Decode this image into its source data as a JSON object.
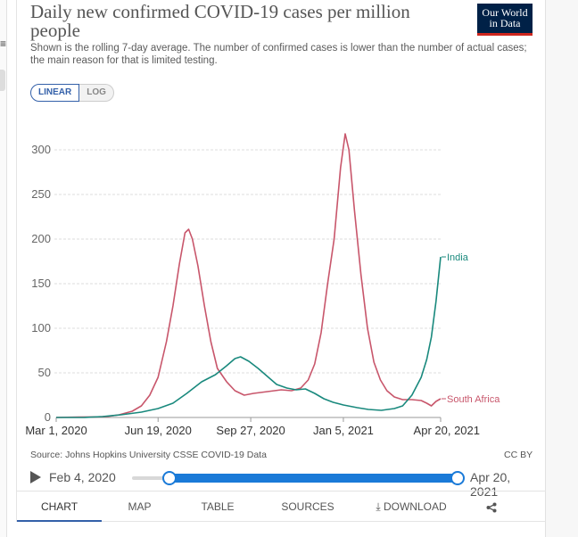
{
  "header": {
    "title": "Daily new confirmed COVID-19 cases per million people",
    "subtitle": "Shown is the rolling 7-day average. The number of confirmed cases is lower than the number of actual cases; the main reason for that is limited testing.",
    "logo_line1": "Our World",
    "logo_line2": "in Data"
  },
  "scale_toggle": {
    "linear": "LINEAR",
    "log": "LOG",
    "selected": "LINEAR"
  },
  "footer": {
    "source": "Source: Johns Hopkins University CSSE COVID-19 Data",
    "license": "CC BY"
  },
  "timeline": {
    "start_label": "Feb 4, 2020",
    "end_label": "Apr 20, 2021",
    "start_position": 0.07,
    "end_position": 1.0
  },
  "tabs": [
    {
      "label": "CHART",
      "active": true
    },
    {
      "label": "MAP"
    },
    {
      "label": "TABLE"
    },
    {
      "label": "SOURCES"
    },
    {
      "label": "DOWNLOAD"
    }
  ],
  "icons": {
    "download": "download-icon",
    "share": "share-icon",
    "play": "play-icon",
    "menu": "menu-icon"
  },
  "colors": {
    "south_africa": "#c8566b",
    "india": "#19897d",
    "accent": "#3360a9",
    "logo_bg": "#002147",
    "logo_bar": "#ce261e"
  },
  "chart_data": {
    "type": "line",
    "title": "Daily new confirmed COVID-19 cases per million people",
    "xlabel": "",
    "ylabel": "",
    "x_range": [
      "2020-03-01",
      "2021-04-20"
    ],
    "ylim": [
      0,
      320
    ],
    "yticks": [
      0,
      50,
      100,
      150,
      200,
      250,
      300
    ],
    "xtick_labels": [
      "Mar 1, 2020",
      "Jun 19, 2020",
      "Sep 27, 2020",
      "Jan 5, 2021",
      "Apr 20, 2021"
    ],
    "xtick_dates": [
      "2020-03-01",
      "2020-06-19",
      "2020-09-27",
      "2021-01-05",
      "2021-04-20"
    ],
    "grid": true,
    "legend": "line-end labels",
    "series": [
      {
        "name": "South Africa",
        "color": "#c8566b",
        "points": [
          [
            "2020-03-01",
            0
          ],
          [
            "2020-03-25",
            0.5
          ],
          [
            "2020-04-10",
            0.6
          ],
          [
            "2020-04-25",
            1
          ],
          [
            "2020-05-08",
            3
          ],
          [
            "2020-05-22",
            7
          ],
          [
            "2020-06-01",
            13
          ],
          [
            "2020-06-10",
            25
          ],
          [
            "2020-06-19",
            45
          ],
          [
            "2020-06-28",
            85
          ],
          [
            "2020-07-05",
            125
          ],
          [
            "2020-07-12",
            172
          ],
          [
            "2020-07-18",
            207
          ],
          [
            "2020-07-22",
            211
          ],
          [
            "2020-07-26",
            200
          ],
          [
            "2020-08-01",
            170
          ],
          [
            "2020-08-08",
            125
          ],
          [
            "2020-08-15",
            85
          ],
          [
            "2020-08-22",
            55
          ],
          [
            "2020-09-01",
            40
          ],
          [
            "2020-09-10",
            30
          ],
          [
            "2020-09-20",
            25
          ],
          [
            "2020-09-30",
            27
          ],
          [
            "2020-10-15",
            29
          ],
          [
            "2020-10-30",
            31
          ],
          [
            "2020-11-10",
            30
          ],
          [
            "2020-11-20",
            33
          ],
          [
            "2020-11-28",
            42
          ],
          [
            "2020-12-05",
            60
          ],
          [
            "2020-12-12",
            95
          ],
          [
            "2020-12-19",
            150
          ],
          [
            "2020-12-26",
            200
          ],
          [
            "2021-01-02",
            280
          ],
          [
            "2021-01-07",
            318
          ],
          [
            "2021-01-11",
            300
          ],
          [
            "2021-01-17",
            232
          ],
          [
            "2021-01-24",
            160
          ],
          [
            "2021-01-31",
            100
          ],
          [
            "2021-02-07",
            62
          ],
          [
            "2021-02-14",
            42
          ],
          [
            "2021-02-21",
            30
          ],
          [
            "2021-03-01",
            23
          ],
          [
            "2021-03-10",
            20
          ],
          [
            "2021-03-20",
            20
          ],
          [
            "2021-03-30",
            19
          ],
          [
            "2021-04-05",
            16
          ],
          [
            "2021-04-10",
            13
          ],
          [
            "2021-04-15",
            18
          ],
          [
            "2021-04-20",
            21
          ]
        ]
      },
      {
        "name": "India",
        "color": "#19897d",
        "points": [
          [
            "2020-03-01",
            0
          ],
          [
            "2020-04-01",
            0.1
          ],
          [
            "2020-04-20",
            1
          ],
          [
            "2020-05-10",
            3
          ],
          [
            "2020-06-01",
            6
          ],
          [
            "2020-06-19",
            10
          ],
          [
            "2020-07-05",
            16
          ],
          [
            "2020-07-20",
            27
          ],
          [
            "2020-08-05",
            40
          ],
          [
            "2020-08-20",
            48
          ],
          [
            "2020-09-01",
            58
          ],
          [
            "2020-09-10",
            66
          ],
          [
            "2020-09-16",
            68
          ],
          [
            "2020-09-25",
            63
          ],
          [
            "2020-10-05",
            55
          ],
          [
            "2020-10-15",
            46
          ],
          [
            "2020-10-25",
            37
          ],
          [
            "2020-11-05",
            33
          ],
          [
            "2020-11-15",
            31
          ],
          [
            "2020-11-25",
            32
          ],
          [
            "2020-12-05",
            27
          ],
          [
            "2020-12-15",
            21
          ],
          [
            "2020-12-25",
            17
          ],
          [
            "2021-01-05",
            14
          ],
          [
            "2021-01-20",
            11
          ],
          [
            "2021-02-01",
            9
          ],
          [
            "2021-02-15",
            8
          ],
          [
            "2021-03-01",
            10
          ],
          [
            "2021-03-10",
            13
          ],
          [
            "2021-03-20",
            25
          ],
          [
            "2021-03-30",
            45
          ],
          [
            "2021-04-05",
            65
          ],
          [
            "2021-04-10",
            90
          ],
          [
            "2021-04-15",
            130
          ],
          [
            "2021-04-20",
            180
          ]
        ]
      }
    ]
  }
}
